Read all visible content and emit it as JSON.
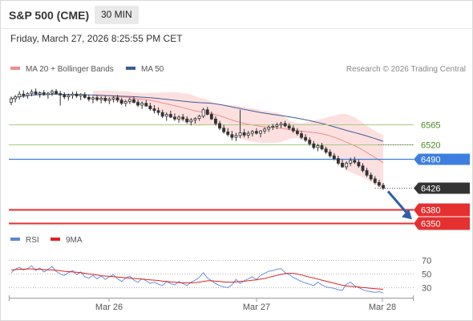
{
  "header": {
    "title": "S&P 500 (CME)",
    "timeframe": "30 MIN"
  },
  "timestamp": "Friday, March 27, 2026 8:25:55 PM CET",
  "credit": "Research © 2026 Trading Central",
  "colors": {
    "ma20": "#f08c8c",
    "bands_fill": "#fbd6d6",
    "ma50": "#3e5c99",
    "level_green": "#a6cc80",
    "level_green_text": "#4d8a26",
    "pivot_blue": "#3d7fe0",
    "resistance_red": "#e53030",
    "last_price": "#333333",
    "rsi": "#5b86d9",
    "rsi_ma": "#e02020",
    "arrow": "#2f5ea8"
  },
  "chart_data": [
    {
      "type": "candlestick",
      "legend": [
        {
          "name": "MA 20 + Bollinger Bands",
          "color": "#f08c8c"
        },
        {
          "name": "MA 50",
          "color": "#3e5c99"
        }
      ],
      "x_ticks": [
        "Mar 26",
        "Mar 27",
        "Mar 28"
      ],
      "ylim": [
        6336,
        6667
      ],
      "price_labels": [
        {
          "value": 6565,
          "label": "6565",
          "style": "green_line"
        },
        {
          "value": 6520,
          "label": "6520",
          "style": "green_line"
        },
        {
          "value": 6490,
          "label": "6490",
          "style": "blue_tag"
        },
        {
          "value": 6426,
          "label": "6426",
          "style": "dark_tag"
        },
        {
          "value": 6380,
          "label": "6380",
          "style": "red_tag"
        },
        {
          "value": 6350,
          "label": "6350",
          "style": "red_tag"
        }
      ],
      "forecast_arrow": {
        "from_bar": 91,
        "from_value": 6426,
        "to_value": 6358
      },
      "candles": [
        [
          6612,
          6625,
          6606,
          6620
        ],
        [
          6620,
          6628,
          6612,
          6624
        ],
        [
          6624,
          6636,
          6618,
          6630
        ],
        [
          6630,
          6638,
          6622,
          6627
        ],
        [
          6627,
          6634,
          6620,
          6631
        ],
        [
          6631,
          6640,
          6625,
          6635
        ],
        [
          6635,
          6642,
          6628,
          6630
        ],
        [
          6630,
          6636,
          6622,
          6633
        ],
        [
          6633,
          6639,
          6626,
          6629
        ],
        [
          6629,
          6635,
          6620,
          6632
        ],
        [
          6632,
          6640,
          6626,
          6636
        ],
        [
          6636,
          6641,
          6629,
          6631
        ],
        [
          6631,
          6637,
          6605,
          6628
        ],
        [
          6628,
          6634,
          6619,
          6624
        ],
        [
          6624,
          6631,
          6616,
          6627
        ],
        [
          6627,
          6635,
          6620,
          6630
        ],
        [
          6630,
          6636,
          6622,
          6626
        ],
        [
          6626,
          6632,
          6617,
          6629
        ],
        [
          6629,
          6634,
          6620,
          6623
        ],
        [
          6623,
          6629,
          6614,
          6619
        ],
        [
          6619,
          6626,
          6610,
          6622
        ],
        [
          6622,
          6628,
          6614,
          6618
        ],
        [
          6618,
          6625,
          6610,
          6621
        ],
        [
          6621,
          6627,
          6612,
          6616
        ],
        [
          6616,
          6623,
          6608,
          6619
        ],
        [
          6619,
          6626,
          6612,
          6622
        ],
        [
          6622,
          6628,
          6612,
          6617
        ],
        [
          6617,
          6622,
          6606,
          6610
        ],
        [
          6610,
          6618,
          6603,
          6614
        ],
        [
          6614,
          6622,
          6608,
          6618
        ],
        [
          6618,
          6624,
          6610,
          6612
        ],
        [
          6612,
          6618,
          6602,
          6606
        ],
        [
          6606,
          6614,
          6598,
          6610
        ],
        [
          6610,
          6617,
          6603,
          6604
        ],
        [
          6604,
          6611,
          6594,
          6598
        ],
        [
          6598,
          6606,
          6588,
          6594
        ],
        [
          6594,
          6601,
          6584,
          6590
        ],
        [
          6590,
          6596,
          6578,
          6582
        ],
        [
          6582,
          6590,
          6572,
          6586
        ],
        [
          6586,
          6594,
          6578,
          6580
        ],
        [
          6580,
          6588,
          6572,
          6576
        ],
        [
          6576,
          6584,
          6568,
          6580
        ],
        [
          6580,
          6587,
          6572,
          6576
        ],
        [
          6576,
          6582,
          6566,
          6570
        ],
        [
          6570,
          6578,
          6562,
          6574
        ],
        [
          6574,
          6580,
          6566,
          6577
        ],
        [
          6577,
          6585,
          6572,
          6582
        ],
        [
          6582,
          6600,
          6578,
          6596
        ],
        [
          6596,
          6602,
          6584,
          6586
        ],
        [
          6586,
          6592,
          6574,
          6576
        ],
        [
          6576,
          6582,
          6562,
          6566
        ],
        [
          6566,
          6572,
          6552,
          6556
        ],
        [
          6556,
          6563,
          6544,
          6548
        ],
        [
          6548,
          6556,
          6538,
          6542
        ],
        [
          6542,
          6550,
          6530,
          6536
        ],
        [
          6536,
          6546,
          6528,
          6540
        ],
        [
          6540,
          6596,
          6534,
          6546
        ],
        [
          6546,
          6554,
          6536,
          6541
        ],
        [
          6541,
          6550,
          6534,
          6545
        ],
        [
          6545,
          6552,
          6538,
          6549
        ],
        [
          6549,
          6556,
          6542,
          6545
        ],
        [
          6545,
          6552,
          6536,
          6550
        ],
        [
          6550,
          6558,
          6544,
          6554
        ],
        [
          6554,
          6562,
          6548,
          6558
        ],
        [
          6558,
          6565,
          6552,
          6560
        ],
        [
          6560,
          6568,
          6554,
          6563
        ],
        [
          6563,
          6570,
          6556,
          6566
        ],
        [
          6566,
          6572,
          6558,
          6561
        ],
        [
          6561,
          6567,
          6552,
          6556
        ],
        [
          6556,
          6562,
          6546,
          6550
        ],
        [
          6550,
          6556,
          6540,
          6544
        ],
        [
          6544,
          6550,
          6532,
          6536
        ],
        [
          6536,
          6543,
          6526,
          6530
        ],
        [
          6530,
          6536,
          6518,
          6522
        ],
        [
          6522,
          6528,
          6510,
          6514
        ],
        [
          6514,
          6522,
          6506,
          6518
        ],
        [
          6518,
          6524,
          6508,
          6511
        ],
        [
          6511,
          6516,
          6500,
          6504
        ],
        [
          6504,
          6510,
          6492,
          6496
        ],
        [
          6496,
          6502,
          6486,
          6490
        ],
        [
          6490,
          6496,
          6476,
          6480
        ],
        [
          6480,
          6488,
          6470,
          6472
        ],
        [
          6472,
          6484,
          6466,
          6480
        ],
        [
          6480,
          6492,
          6474,
          6486
        ],
        [
          6486,
          6494,
          6478,
          6482
        ],
        [
          6482,
          6488,
          6470,
          6474
        ],
        [
          6474,
          6480,
          6460,
          6464
        ],
        [
          6464,
          6470,
          6450,
          6454
        ],
        [
          6454,
          6460,
          6442,
          6446
        ],
        [
          6446,
          6452,
          6434,
          6438
        ],
        [
          6438,
          6444,
          6428,
          6432
        ],
        [
          6432,
          6437,
          6422,
          6426
        ]
      ]
    },
    {
      "type": "line",
      "legend": [
        {
          "name": "RSI",
          "color": "#5b86d9"
        },
        {
          "name": "9MA",
          "color": "#e02020"
        }
      ],
      "ylim": [
        14,
        80
      ],
      "y_ticks": [
        70,
        50,
        30
      ],
      "rsi": [
        52,
        57,
        60,
        56,
        58,
        62,
        55,
        59,
        53,
        57,
        61,
        54,
        50,
        48,
        52,
        55,
        49,
        53,
        46,
        44,
        48,
        43,
        47,
        42,
        46,
        49,
        43,
        39,
        44,
        47,
        41,
        38,
        43,
        40,
        36,
        38,
        35,
        33,
        39,
        36,
        34,
        39,
        36,
        33,
        38,
        41,
        45,
        52,
        44,
        40,
        36,
        33,
        31,
        30,
        34,
        42,
        36,
        40,
        43,
        46,
        42,
        48,
        51,
        54,
        55,
        57,
        58,
        52,
        49,
        45,
        42,
        39,
        37,
        35,
        33,
        38,
        34,
        31,
        30,
        29,
        27,
        26,
        35,
        38,
        33,
        30,
        27,
        25,
        24,
        23,
        24,
        22
      ],
      "rsi_ma": [
        56,
        56.5,
        57,
        57,
        57.5,
        57.5,
        57,
        57,
        56.5,
        56,
        56,
        55.5,
        55,
        54,
        53.5,
        53,
        52.5,
        52,
        51,
        50,
        49.5,
        48.5,
        47.5,
        47,
        46.5,
        46,
        45.5,
        45,
        44.5,
        44,
        43.5,
        43,
        42.5,
        42,
        41.5,
        41,
        40.5,
        39.5,
        39,
        38.5,
        38,
        37.5,
        37,
        37,
        37,
        37.5,
        38,
        39,
        40,
        40,
        39.5,
        39,
        38.5,
        38,
        38,
        38.5,
        39,
        39.5,
        40,
        41,
        41.5,
        42.5,
        43.5,
        45,
        46.5,
        48,
        49.5,
        50.5,
        51,
        51,
        50,
        48.5,
        47,
        45.5,
        44,
        42.5,
        41,
        39.5,
        38,
        36.5,
        35,
        33.5,
        32.5,
        32,
        31.5,
        31,
        30,
        29.5,
        29,
        28.5,
        28,
        27.5
      ]
    }
  ]
}
